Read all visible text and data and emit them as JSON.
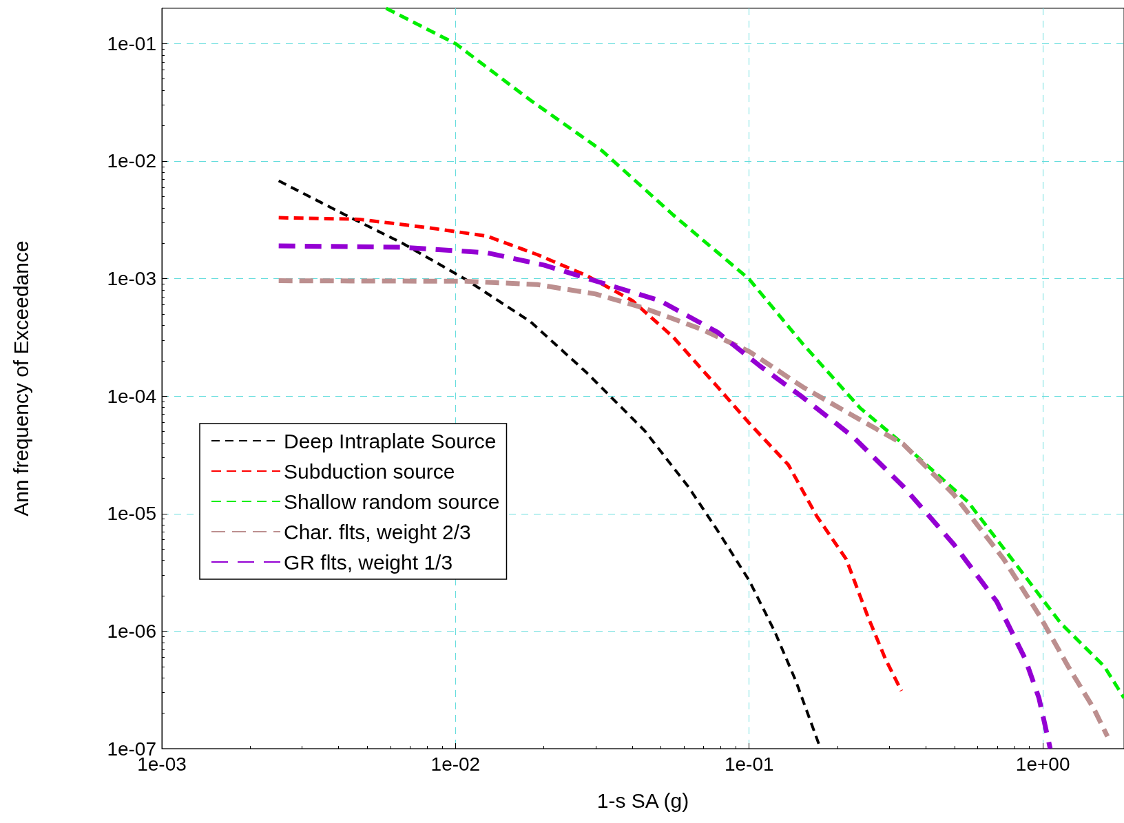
{
  "chart_data": {
    "type": "line",
    "xlabel": "1-s SA (g)",
    "ylabel": "Ann frequency of Exceedance",
    "log": "xy",
    "grid": true,
    "legend": "bottom left",
    "marker": "none",
    "line_style": "dashed",
    "xlim": [
      0.001,
      1.89
    ],
    "ylim": [
      1e-07,
      0.2
    ],
    "xticks": [
      {
        "value": 0.001,
        "label": "1e-03"
      },
      {
        "value": 0.01,
        "label": "1e-02"
      },
      {
        "value": 0.1,
        "label": "1e-01"
      },
      {
        "value": 1,
        "label": "1e+00"
      }
    ],
    "yticks": [
      {
        "value": 1e-07,
        "label": "1e-07"
      },
      {
        "value": 1e-06,
        "label": "1e-06"
      },
      {
        "value": 1e-05,
        "label": "1e-05"
      },
      {
        "value": 0.0001,
        "label": "1e-04"
      },
      {
        "value": 0.001,
        "label": "1e-03"
      },
      {
        "value": 0.01,
        "label": "1e-02"
      },
      {
        "value": 0.1,
        "label": "1e-01"
      }
    ],
    "series": [
      {
        "name": "Deep Intraplate Source",
        "color": "#000000",
        "x": [
          0.0025,
          0.0042,
          0.0066,
          0.0108,
          0.018,
          0.028,
          0.044,
          0.062,
          0.078,
          0.1,
          0.122,
          0.144,
          0.175
        ],
        "values": [
          0.0068,
          0.0035,
          0.002,
          0.00099,
          0.00043,
          0.000158,
          5.1e-05,
          1.7e-05,
          7.2e-06,
          2.7e-06,
          1e-06,
          3.8e-07,
          1e-07
        ]
      },
      {
        "name": "Subduction source",
        "color": "#ff0000",
        "x": [
          0.0025,
          0.0047,
          0.0082,
          0.0128,
          0.019,
          0.028,
          0.04,
          0.055,
          0.078,
          0.1,
          0.136,
          0.17,
          0.214,
          0.253,
          0.291,
          0.33
        ],
        "values": [
          0.0033,
          0.0032,
          0.0027,
          0.0023,
          0.0016,
          0.00106,
          0.00065,
          0.00032,
          0.00012,
          5.9e-05,
          2.6e-05,
          9.5e-06,
          4.1e-06,
          1.35e-06,
          5.8e-07,
          3.1e-07
        ]
      },
      {
        "name": "Shallow random source",
        "color": "#00ee00",
        "x": [
          0.0058,
          0.01,
          0.018,
          0.0315,
          0.055,
          0.1,
          0.152,
          0.239,
          0.335,
          0.556,
          0.824,
          1.15,
          1.62,
          1.89
        ],
        "values": [
          0.2,
          0.1,
          0.033,
          0.0123,
          0.0035,
          0.00099,
          0.00028,
          7.9e-05,
          3.9e-05,
          1.26e-05,
          3.5e-06,
          1.17e-06,
          5e-07,
          2.7e-07
        ]
      },
      {
        "name": "Char. flts, weight 2/3",
        "color": "#bc8f8f",
        "x": [
          0.0025,
          0.0108,
          0.019,
          0.03,
          0.044,
          0.069,
          0.1,
          0.152,
          0.226,
          0.335,
          0.497,
          0.736,
          0.975,
          1.22,
          1.49,
          1.66
        ],
        "values": [
          0.00096,
          0.00095,
          0.00089,
          0.00074,
          0.00056,
          0.00037,
          0.00024,
          0.00012,
          6.8e-05,
          3.9e-05,
          1.46e-05,
          4.1e-06,
          1.35e-06,
          5e-07,
          2.2e-07,
          1.27e-07
        ]
      },
      {
        "name": "GR flts, weight 1/3",
        "color": "#9400d3",
        "x": [
          0.0025,
          0.0066,
          0.0128,
          0.0201,
          0.0315,
          0.0496,
          0.078,
          0.109,
          0.152,
          0.226,
          0.335,
          0.497,
          0.697,
          0.871,
          0.97,
          1.06
        ],
        "values": [
          0.0019,
          0.00185,
          0.00166,
          0.0013,
          0.00092,
          0.00065,
          0.00035,
          0.00018,
          9.8e-05,
          4.5e-05,
          1.7e-05,
          5.5e-06,
          1.78e-06,
          5.8e-07,
          2.7e-07,
          1e-07
        ]
      }
    ]
  }
}
